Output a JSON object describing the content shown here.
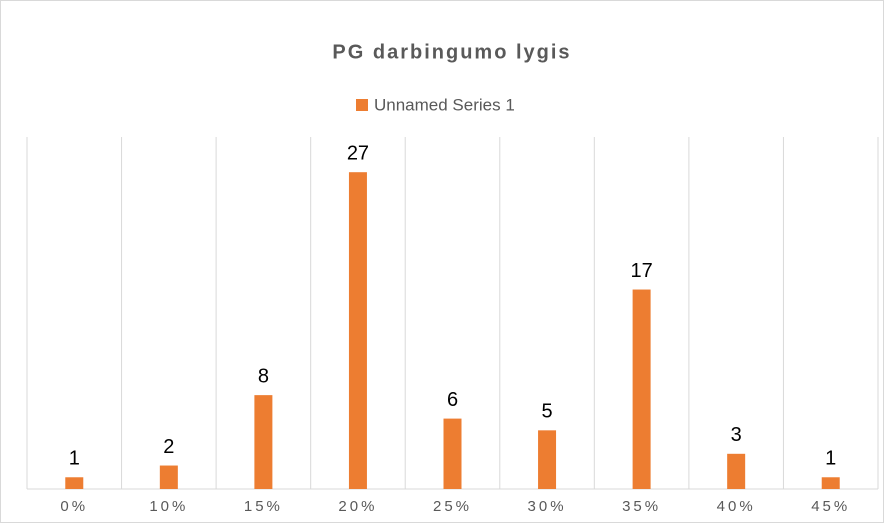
{
  "chart_data": {
    "type": "bar",
    "title": "PG darbingumo lygis",
    "categories": [
      "0%",
      "10%",
      "15%",
      "20%",
      "25%",
      "30%",
      "35%",
      "40%",
      "45%"
    ],
    "series": [
      {
        "name": "Unnamed Series 1",
        "color": "#ed7d31",
        "values": [
          1,
          2,
          8,
          27,
          6,
          5,
          17,
          3,
          1
        ]
      }
    ],
    "ylim": [
      0,
      30
    ],
    "legend": "top"
  }
}
